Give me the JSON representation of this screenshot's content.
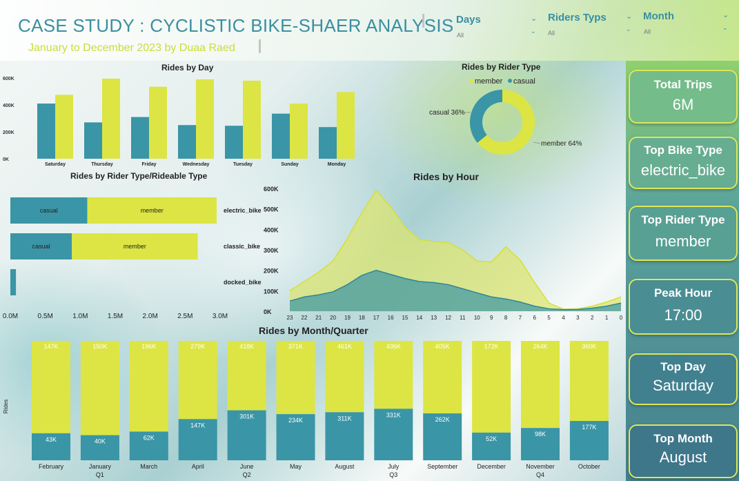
{
  "header": {
    "title": "CASE STUDY : CYCLISTIC BIKE-SHAER ANALYSIS",
    "subtitle": "January to December 2023 by Duaa Raed"
  },
  "slicers": [
    {
      "label": "Days",
      "value": "All"
    },
    {
      "label": "Riders Typs",
      "value": "All"
    },
    {
      "label": "Month",
      "value": "All"
    }
  ],
  "colors": {
    "casual": "#3a95a6",
    "member": "#dce543"
  },
  "kpis": [
    {
      "title": "Total Trips",
      "value": "6M"
    },
    {
      "title": "Top Bike Type",
      "value": "electric_bike"
    },
    {
      "title": "Top Rider Type",
      "value": "member"
    },
    {
      "title": "Peak Hour",
      "value": "17:00"
    },
    {
      "title": "Top Day",
      "value": "Saturday"
    },
    {
      "title": "Top Month",
      "value": "August"
    }
  ],
  "chart_data": [
    {
      "type": "bar",
      "title": "Rides by Day",
      "categories": [
        "Saturday",
        "Thursday",
        "Friday",
        "Wednesday",
        "Tuesday",
        "Sunday",
        "Monday"
      ],
      "series": [
        {
          "name": "casual",
          "values": [
            410000,
            270000,
            310000,
            250000,
            245000,
            335000,
            235000
          ]
        },
        {
          "name": "member",
          "values": [
            475000,
            595000,
            535000,
            590000,
            580000,
            410000,
            495000
          ]
        }
      ],
      "yticks": [
        "0K",
        "200K",
        "400K",
        "600K"
      ],
      "ylim": [
        0,
        600000
      ]
    },
    {
      "type": "pie",
      "title": "Rides by Rider Type",
      "legend": [
        "member",
        "casual"
      ],
      "slices": [
        {
          "name": "member",
          "value": 64,
          "label": "member 64%"
        },
        {
          "name": "casual",
          "value": 36,
          "label": "casual 36%"
        }
      ]
    },
    {
      "type": "bar",
      "title": "Rides by Rider Type/Rideable Type",
      "categories": [
        "electric_bike",
        "classic_bike",
        "docked_bike"
      ],
      "series": [
        {
          "name": "casual",
          "values": [
            1.1,
            0.88,
            0.08
          ]
        },
        {
          "name": "member",
          "values": [
            1.85,
            1.8,
            0
          ]
        }
      ],
      "xticks": [
        "0.0M",
        "0.5M",
        "1.0M",
        "1.5M",
        "2.0M",
        "2.5M",
        "3.0M"
      ],
      "xlim": [
        0,
        3.0
      ]
    },
    {
      "type": "area",
      "title": "Rides by Hour",
      "x": [
        "23",
        "22",
        "21",
        "20",
        "19",
        "18",
        "17",
        "16",
        "15",
        "14",
        "13",
        "12",
        "11",
        "10",
        "9",
        "8",
        "7",
        "6",
        "5",
        "4",
        "3",
        "2",
        "1",
        "0"
      ],
      "series": [
        {
          "name": "casual",
          "values": [
            50000,
            70000,
            80000,
            95000,
            130000,
            175000,
            200000,
            180000,
            160000,
            145000,
            140000,
            130000,
            110000,
            90000,
            70000,
            60000,
            45000,
            25000,
            12000,
            8000,
            9000,
            15000,
            25000,
            40000
          ]
        },
        {
          "name": "member",
          "values": [
            100000,
            145000,
            190000,
            245000,
            355000,
            480000,
            590000,
            510000,
            410000,
            350000,
            340000,
            335000,
            300000,
            245000,
            240000,
            315000,
            250000,
            140000,
            40000,
            10000,
            12000,
            25000,
            45000,
            70000
          ]
        }
      ],
      "yticks": [
        "0K",
        "100K",
        "200K",
        "300K",
        "400K",
        "500K",
        "600K"
      ],
      "ylim": [
        0,
        600000
      ]
    },
    {
      "type": "bar",
      "title": "Rides by Month/Quarter",
      "ylabel": "Rides",
      "categories": [
        "February",
        "January",
        "March",
        "April",
        "June",
        "May",
        "August",
        "July",
        "September",
        "December",
        "November",
        "October"
      ],
      "quarters": [
        {
          "label": "Q1",
          "under": "January"
        },
        {
          "label": "Q2",
          "under": "June"
        },
        {
          "label": "Q3",
          "under": "July"
        },
        {
          "label": "Q4",
          "under": "November"
        }
      ],
      "series": [
        {
          "name": "casual",
          "values": [
            43000,
            40000,
            62000,
            147000,
            301000,
            234000,
            311000,
            331000,
            262000,
            52000,
            98000,
            177000
          ],
          "labels": [
            "43K",
            "40K",
            "62K",
            "147K",
            "301K",
            "234K",
            "311K",
            "331K",
            "262K",
            "52K",
            "98K",
            "177K"
          ]
        },
        {
          "name": "member",
          "values": [
            147000,
            150000,
            196000,
            279000,
            418000,
            371000,
            461000,
            436000,
            405000,
            172000,
            264000,
            360000
          ],
          "labels": [
            "147K",
            "150K",
            "196K",
            "279K",
            "418K",
            "371K",
            "461K",
            "436K",
            "405K",
            "172K",
            "264K",
            "360K"
          ]
        }
      ],
      "stack": "100%"
    }
  ]
}
